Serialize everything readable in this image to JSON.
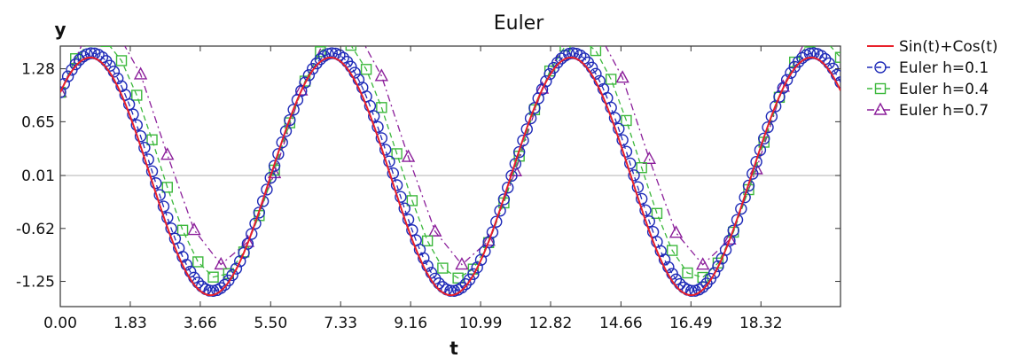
{
  "chart_data": {
    "type": "line",
    "title": "Euler",
    "xlabel": "t",
    "ylabel": "y",
    "xlim": [
      0,
      20.4
    ],
    "ylim": [
      -1.55,
      1.55
    ],
    "x_ticks": [
      "0.00",
      "1.83",
      "3.66",
      "5.50",
      "7.33",
      "9.16",
      "10.99",
      "12.82",
      "14.66",
      "16.49",
      "18.32"
    ],
    "y_ticks": [
      "1.28",
      "0.65",
      "0.01",
      "-0.62",
      "-1.25"
    ],
    "reference_line": 0.01,
    "legend_position": "right",
    "series": [
      {
        "name": "Sin(t)+Cos(t)",
        "step": 0.05,
        "color": "#e8202a",
        "style": "solid",
        "marker": "none"
      },
      {
        "name": "Euler h=0.1",
        "step": 0.1,
        "color": "#1f2bb8",
        "style": "dashed",
        "marker": "circle"
      },
      {
        "name": "Euler h=0.4",
        "step": 0.4,
        "color": "#3cb83c",
        "style": "dashed",
        "marker": "square"
      },
      {
        "name": "Euler h=0.7",
        "step": 0.7,
        "color": "#8b1e9a",
        "style": "dashdot",
        "marker": "triangle"
      }
    ]
  }
}
